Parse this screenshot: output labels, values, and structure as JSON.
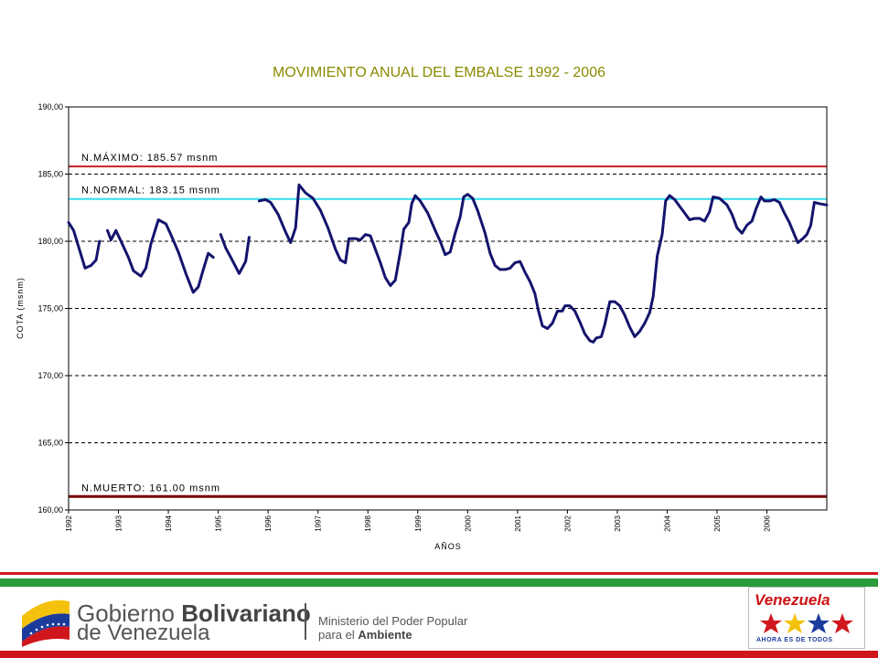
{
  "colors": {
    "title": "#8a8a00",
    "series": "#14146e",
    "max_line": "#cc2222",
    "normal_line": "#33ddee",
    "dead_line": "#7a0000",
    "stripe_red": "#d0161d",
    "stripe_green": "#2a9a3a",
    "venezuela_red": "#cc1111"
  },
  "chart_data": {
    "type": "line",
    "title": "MOVIMIENTO ANUAL DEL EMBALSE 1992 - 2006",
    "xlabel": "AÑOS",
    "ylabel": "COTA (msnm)",
    "xlim": [
      1992,
      2007
    ],
    "ylim": [
      160,
      190
    ],
    "x_ticks": [
      "1992",
      "1993",
      "1994",
      "1995",
      "1996",
      "1997",
      "1998",
      "1999",
      "2000",
      "2001",
      "2002",
      "2003",
      "2004",
      "2005",
      "2006"
    ],
    "y_ticks": [
      "160,00",
      "165,00",
      "170,00",
      "175,00",
      "180,00",
      "185,00",
      "190,00"
    ],
    "grid": "horizontal dashed",
    "reference_lines": [
      {
        "label": "N.MÁXIMO: 185.57 msnm",
        "value": 185.57
      },
      {
        "label": "N.NORMAL: 183.15 msnm",
        "value": 183.15
      },
      {
        "label": "N.MUERTO: 161.00 msnm",
        "value": 161.0
      }
    ],
    "series": [
      {
        "segments": [
          [
            [
              1992.0,
              181.4
            ],
            [
              1992.1,
              180.8
            ],
            [
              1992.2,
              179.6
            ],
            [
              1992.33,
              178.0
            ],
            [
              1992.45,
              178.2
            ],
            [
              1992.55,
              178.6
            ],
            [
              1992.62,
              180.0
            ]
          ],
          [
            [
              1992.78,
              180.8
            ],
            [
              1992.85,
              180.1
            ],
            [
              1992.95,
              180.8
            ],
            [
              1993.1,
              179.6
            ],
            [
              1993.2,
              178.8
            ],
            [
              1993.3,
              177.8
            ],
            [
              1993.45,
              177.4
            ],
            [
              1993.55,
              178.0
            ],
            [
              1993.65,
              179.8
            ],
            [
              1993.8,
              181.6
            ],
            [
              1993.95,
              181.3
            ],
            [
              1994.05,
              180.5
            ],
            [
              1994.2,
              179.2
            ],
            [
              1994.35,
              177.6
            ],
            [
              1994.5,
              176.2
            ],
            [
              1994.6,
              176.6
            ],
            [
              1994.7,
              177.9
            ],
            [
              1994.8,
              179.1
            ],
            [
              1994.9,
              178.8
            ]
          ],
          [
            [
              1995.05,
              180.5
            ],
            [
              1995.15,
              179.5
            ],
            [
              1995.25,
              178.8
            ],
            [
              1995.35,
              178.1
            ],
            [
              1995.42,
              177.6
            ],
            [
              1995.55,
              178.5
            ],
            [
              1995.62,
              180.3
            ]
          ]
        ]
      },
      {
        "segments": [
          [
            [
              1995.82,
              183.0
            ],
            [
              1995.95,
              183.1
            ],
            [
              1996.05,
              182.9
            ],
            [
              1996.2,
              182.0
            ],
            [
              1996.35,
              180.7
            ],
            [
              1996.45,
              179.9
            ],
            [
              1996.55,
              181.0
            ],
            [
              1996.62,
              184.2
            ],
            [
              1996.75,
              183.6
            ],
            [
              1996.9,
              183.2
            ],
            [
              1997.05,
              182.3
            ],
            [
              1997.2,
              181.0
            ],
            [
              1997.35,
              179.4
            ],
            [
              1997.45,
              178.6
            ],
            [
              1997.55,
              178.4
            ],
            [
              1997.62,
              180.2
            ],
            [
              1997.75,
              180.2
            ],
            [
              1997.85,
              180.1
            ],
            [
              1997.95,
              180.5
            ],
            [
              1998.05,
              180.4
            ],
            [
              1998.15,
              179.4
            ],
            [
              1998.25,
              178.4
            ],
            [
              1998.35,
              177.3
            ],
            [
              1998.45,
              176.7
            ],
            [
              1998.55,
              177.1
            ],
            [
              1998.65,
              179.2
            ],
            [
              1998.72,
              180.9
            ],
            [
              1998.82,
              181.4
            ],
            [
              1998.88,
              182.8
            ],
            [
              1998.95,
              183.4
            ],
            [
              1999.05,
              183.0
            ],
            [
              1999.2,
              182.1
            ],
            [
              1999.35,
              180.8
            ],
            [
              1999.45,
              180.0
            ],
            [
              1999.55,
              179.0
            ],
            [
              1999.65,
              179.2
            ],
            [
              1999.75,
              180.6
            ],
            [
              1999.85,
              181.8
            ],
            [
              1999.92,
              183.3
            ],
            [
              2000.0,
              183.5
            ],
            [
              2000.1,
              183.2
            ],
            [
              2000.2,
              182.3
            ],
            [
              2000.35,
              180.6
            ],
            [
              2000.45,
              179.1
            ],
            [
              2000.55,
              178.2
            ],
            [
              2000.65,
              177.9
            ],
            [
              2000.75,
              177.9
            ],
            [
              2000.85,
              178.0
            ],
            [
              2000.95,
              178.4
            ],
            [
              2001.05,
              178.5
            ],
            [
              2001.15,
              177.7
            ],
            [
              2001.25,
              177.0
            ],
            [
              2001.35,
              176.1
            ],
            [
              2001.42,
              174.8
            ],
            [
              2001.5,
              173.7
            ],
            [
              2001.6,
              173.5
            ],
            [
              2001.7,
              173.9
            ],
            [
              2001.8,
              174.8
            ],
            [
              2001.9,
              174.8
            ],
            [
              2001.95,
              175.2
            ],
            [
              2002.05,
              175.2
            ],
            [
              2002.15,
              174.8
            ],
            [
              2002.25,
              174.0
            ],
            [
              2002.35,
              173.1
            ],
            [
              2002.45,
              172.6
            ],
            [
              2002.52,
              172.5
            ],
            [
              2002.58,
              172.8
            ],
            [
              2002.68,
              172.9
            ],
            [
              2002.75,
              173.8
            ],
            [
              2002.85,
              175.5
            ],
            [
              2002.95,
              175.5
            ],
            [
              2003.05,
              175.2
            ],
            [
              2003.15,
              174.5
            ],
            [
              2003.25,
              173.6
            ],
            [
              2003.35,
              172.9
            ],
            [
              2003.45,
              173.3
            ],
            [
              2003.55,
              173.9
            ],
            [
              2003.65,
              174.7
            ],
            [
              2003.72,
              175.9
            ],
            [
              2003.8,
              178.9
            ],
            [
              2003.9,
              180.5
            ],
            [
              2003.97,
              183.0
            ],
            [
              2004.05,
              183.4
            ],
            [
              2004.15,
              183.1
            ],
            [
              2004.25,
              182.6
            ],
            [
              2004.35,
              182.1
            ],
            [
              2004.45,
              181.6
            ],
            [
              2004.55,
              181.7
            ],
            [
              2004.65,
              181.7
            ],
            [
              2004.75,
              181.5
            ],
            [
              2004.85,
              182.2
            ],
            [
              2004.92,
              183.3
            ],
            [
              2005.05,
              183.2
            ],
            [
              2005.2,
              182.7
            ],
            [
              2005.3,
              182.0
            ],
            [
              2005.4,
              181.0
            ],
            [
              2005.5,
              180.6
            ],
            [
              2005.6,
              181.2
            ],
            [
              2005.7,
              181.5
            ],
            [
              2005.78,
              182.4
            ],
            [
              2005.88,
              183.3
            ],
            [
              2005.95,
              183.0
            ],
            [
              2006.05,
              183.0
            ],
            [
              2006.15,
              183.1
            ],
            [
              2006.25,
              182.9
            ],
            [
              2006.35,
              182.1
            ],
            [
              2006.45,
              181.4
            ],
            [
              2006.55,
              180.5
            ],
            [
              2006.62,
              179.9
            ],
            [
              2006.72,
              180.2
            ],
            [
              2006.8,
              180.5
            ],
            [
              2006.88,
              181.2
            ],
            [
              2006.95,
              182.9
            ],
            [
              2007.05,
              182.8
            ],
            [
              2007.2,
              182.7
            ]
          ]
        ]
      }
    ]
  },
  "footer": {
    "gobierno_line1a": "Gobierno ",
    "gobierno_line1b": "Bolivariano",
    "gobierno_line2": "de Venezuela",
    "ministerio_line1": "Ministerio del Poder Popular",
    "ministerio_line2a": "para el ",
    "ministerio_line2b": "Ambiente",
    "venezuela_logo": "Venezuela",
    "venezuela_slogan": "AHORA ES DE TODOS",
    "logo_icon": "venezuela-flag-swoosh-icon",
    "stars_icon": "star-figures-icon"
  }
}
